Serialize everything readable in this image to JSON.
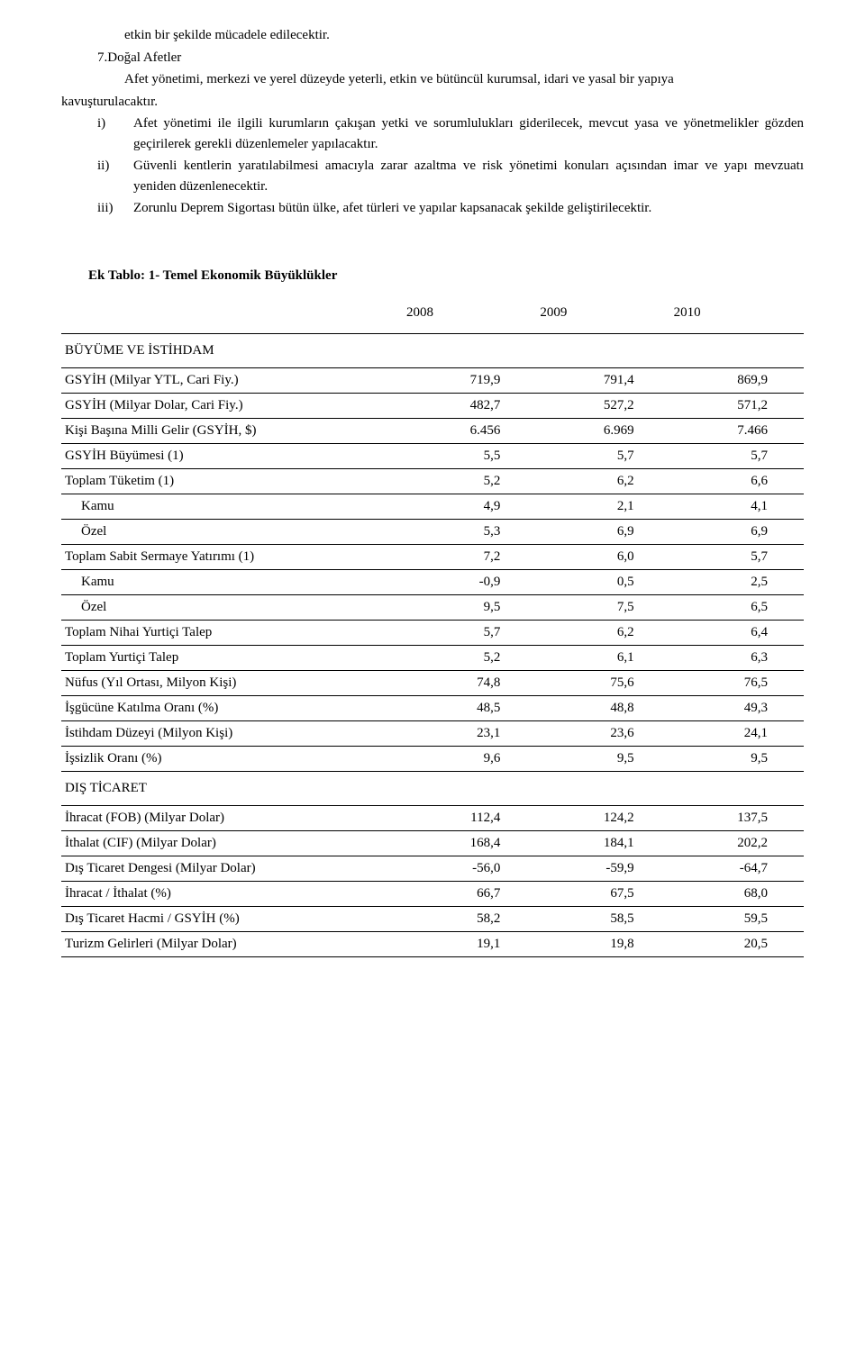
{
  "para_indent1": "etkin bir şekilde mücadele edilecektir.",
  "heading7": "7.Doğal Afetler",
  "para_after_heading": "Afet yönetimi, merkezi ve yerel düzeyde yeterli, etkin ve bütüncül kurumsal, idari ve yasal bir yapıya",
  "para_after_heading_cont": "kavuşturulacaktır.",
  "roman": [
    {
      "n": "i)",
      "t": "Afet yönetimi ile ilgili kurumların çakışan yetki ve sorumlulukları giderilecek, mevcut yasa ve yönetmelikler gözden geçirilerek gerekli düzenlemeler yapılacaktır."
    },
    {
      "n": "ii)",
      "t": "Güvenli kentlerin yaratılabilmesi amacıyla zarar azaltma ve risk yönetimi konuları açısından imar ve yapı mevzuatı yeniden düzenlenecektir."
    },
    {
      "n": "iii)",
      "t": "Zorunlu Deprem Sigortası bütün ülke, afet türleri ve yapılar kapsanacak şekilde geliştirilecektir."
    }
  ],
  "table_title": "Ek Tablo: 1-  Temel Ekonomik Büyüklükler",
  "years": [
    "2008",
    "2009",
    "2010"
  ],
  "rows": [
    {
      "label": "BÜYÜME VE İSTİHDAM",
      "vals": [
        "",
        "",
        ""
      ],
      "section": true
    },
    {
      "label": "GSYİH (Milyar YTL, Cari Fiy.)",
      "vals": [
        "719,9",
        "791,4",
        "869,9"
      ]
    },
    {
      "label": "GSYİH (Milyar Dolar, Cari Fiy.)",
      "vals": [
        "482,7",
        "527,2",
        "571,2"
      ]
    },
    {
      "label": "Kişi Başına Milli Gelir (GSYİH, $)",
      "vals": [
        "6.456",
        "6.969",
        "7.466"
      ]
    },
    {
      "label": "GSYİH Büyümesi (1)",
      "vals": [
        "5,5",
        "5,7",
        "5,7"
      ]
    },
    {
      "label": "Toplam Tüketim (1)",
      "vals": [
        "5,2",
        "6,2",
        "6,6"
      ]
    },
    {
      "label": "Kamu",
      "vals": [
        "4,9",
        "2,1",
        "4,1"
      ],
      "sub": true
    },
    {
      "label": "Özel",
      "vals": [
        "5,3",
        "6,9",
        "6,9"
      ],
      "sub": true
    },
    {
      "label": "Toplam Sabit Sermaye Yatırımı (1)",
      "vals": [
        "7,2",
        "6,0",
        "5,7"
      ]
    },
    {
      "label": "Kamu",
      "vals": [
        "-0,9",
        "0,5",
        "2,5"
      ],
      "sub": true
    },
    {
      "label": "Özel",
      "vals": [
        "9,5",
        "7,5",
        "6,5"
      ],
      "sub": true
    },
    {
      "label": "Toplam Nihai Yurtiçi Talep",
      "vals": [
        "5,7",
        "6,2",
        "6,4"
      ]
    },
    {
      "label": "Toplam Yurtiçi Talep",
      "vals": [
        "5,2",
        "6,1",
        "6,3"
      ]
    },
    {
      "label": "Nüfus (Yıl Ortası, Milyon Kişi)",
      "vals": [
        "74,8",
        "75,6",
        "76,5"
      ]
    },
    {
      "label": "İşgücüne Katılma Oranı (%)",
      "vals": [
        "48,5",
        "48,8",
        "49,3"
      ]
    },
    {
      "label": "İstihdam Düzeyi (Milyon Kişi)",
      "vals": [
        "23,1",
        "23,6",
        "24,1"
      ]
    },
    {
      "label": "İşsizlik Oranı (%)",
      "vals": [
        "9,6",
        "9,5",
        "9,5"
      ]
    },
    {
      "label": "DIŞ TİCARET",
      "vals": [
        "",
        "",
        ""
      ],
      "section": true
    },
    {
      "label": "İhracat (FOB) (Milyar Dolar)",
      "vals": [
        "112,4",
        "124,2",
        "137,5"
      ]
    },
    {
      "label": "İthalat (CIF) (Milyar Dolar)",
      "vals": [
        "168,4",
        "184,1",
        "202,2"
      ]
    },
    {
      "label": "Dış Ticaret Dengesi (Milyar Dolar)",
      "vals": [
        "-56,0",
        "-59,9",
        "-64,7"
      ]
    },
    {
      "label": "İhracat / İthalat (%)",
      "vals": [
        "66,7",
        "67,5",
        "68,0"
      ]
    },
    {
      "label": "Dış Ticaret Hacmi / GSYİH (%)",
      "vals": [
        "58,2",
        "58,5",
        "59,5"
      ]
    },
    {
      "label": "Turizm Gelirleri (Milyar Dolar)",
      "vals": [
        "19,1",
        "19,8",
        "20,5"
      ]
    }
  ]
}
